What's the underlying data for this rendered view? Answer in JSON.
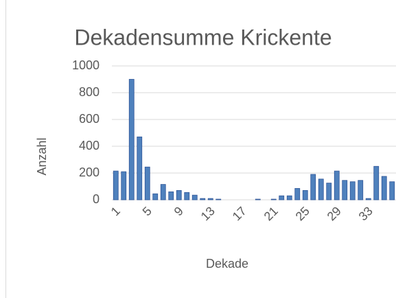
{
  "chart_data": {
    "type": "bar",
    "title": "Dekadensumme Krickente",
    "x_label": "Dekade",
    "y_label": "Anzahl",
    "categories": [
      "1",
      null,
      null,
      null,
      "5",
      null,
      null,
      null,
      "9",
      null,
      null,
      null,
      "13",
      null,
      null,
      null,
      "17",
      null,
      null,
      null,
      "21",
      null,
      null,
      null,
      "25",
      null,
      null,
      null,
      "29",
      null,
      null,
      null,
      "33",
      null,
      null,
      null
    ],
    "values": [
      215,
      210,
      900,
      470,
      245,
      45,
      115,
      60,
      70,
      55,
      35,
      10,
      10,
      5,
      0,
      0,
      0,
      0,
      5,
      0,
      5,
      30,
      30,
      85,
      70,
      190,
      155,
      125,
      215,
      145,
      135,
      145,
      10,
      250,
      175,
      135
    ],
    "color": "#4f81bd",
    "ylim": [
      0,
      1000
    ],
    "yticks": [
      0,
      200,
      400,
      600,
      800,
      1000
    ],
    "grid": true
  }
}
